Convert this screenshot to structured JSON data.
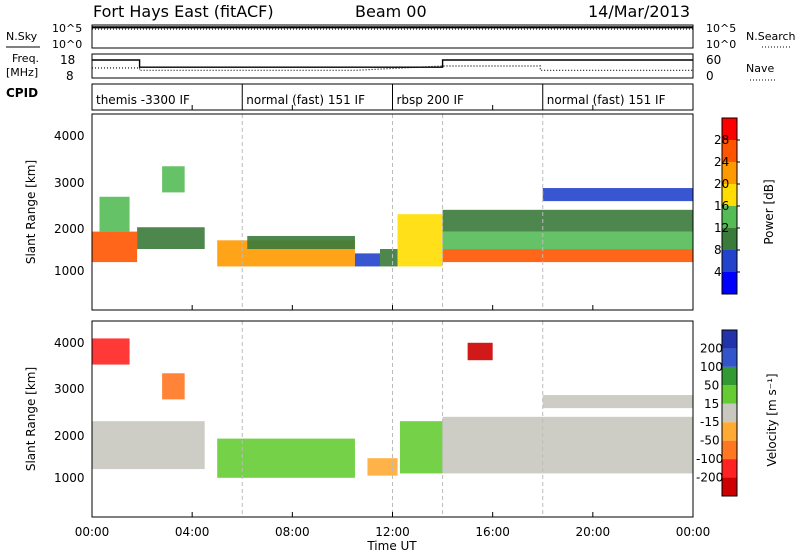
{
  "header": {
    "title": "Fort Hays East (fitACF)",
    "beam": "Beam 00",
    "date": "14/Mar/2013"
  },
  "noise_panel": {
    "left_label": "N.Sky",
    "right_label": "N.Search",
    "left_ticks": [
      "10^5",
      "10^0"
    ],
    "right_ticks": [
      "10^5",
      "10^0"
    ]
  },
  "freq_panel": {
    "left_label_line1": "Freq.",
    "left_label_line2": "[MHz]",
    "right_label": "Nave",
    "left_ticks": [
      "18",
      "8"
    ],
    "right_ticks": [
      "60",
      "0"
    ]
  },
  "cpid": {
    "label": "CPID",
    "segments": [
      {
        "text": "themis -3300 IF",
        "start_hour": 0
      },
      {
        "text": "normal (fast) 151 IF",
        "start_hour": 6
      },
      {
        "text": "rbsp 200 IF",
        "start_hour": 12
      },
      {
        "text": "normal (fast) 151 IF",
        "start_hour": 18
      }
    ]
  },
  "power_panel": {
    "ylabel": "Slant Range [km]",
    "yticks": [
      "4000",
      "3000",
      "2000",
      "1000"
    ],
    "colorbar_label": "Power [dB]",
    "colorbar_ticks": [
      "28",
      "24",
      "20",
      "16",
      "12",
      "8",
      "4"
    ],
    "colors": [
      "#0000ff",
      "#2244cc",
      "#3a7a3a",
      "#55bb55",
      "#ffdd00",
      "#ff9900",
      "#ff5500",
      "#ff0000"
    ]
  },
  "velocity_panel": {
    "ylabel": "Slant Range [km]",
    "yticks": [
      "4000",
      "3000",
      "2000",
      "1000"
    ],
    "colorbar_label": "Velocity [m s⁻¹]",
    "colorbar_ticks": [
      "200",
      "100",
      "50",
      "15",
      "-15",
      "-50",
      "-100",
      "-200"
    ],
    "colors": [
      "#2233aa",
      "#3355cc",
      "#339933",
      "#66cc33",
      "#c8c8c0",
      "#ffaa33",
      "#ff7722",
      "#ff2222",
      "#cc0000"
    ]
  },
  "x_axis": {
    "label": "Time UT",
    "ticks": [
      "00:00",
      "04:00",
      "08:00",
      "12:00",
      "16:00",
      "20:00",
      "00:00"
    ]
  },
  "chart_data": [
    {
      "type": "line",
      "title": "N.Sky / N.Search",
      "x_unit": "hours UT",
      "xlim": [
        0,
        24
      ],
      "ylim_log10": [
        0,
        5
      ],
      "series": [
        {
          "name": "N.Sky",
          "x": [
            0,
            24
          ],
          "y_log10": [
            4.5,
            4.5
          ]
        },
        {
          "name": "N.Search",
          "x": [
            0,
            24
          ],
          "y_log10": [
            4.1,
            4.1
          ]
        }
      ]
    },
    {
      "type": "line",
      "title": "Freq. [MHz] / Nave",
      "x_unit": "hours UT",
      "xlim": [
        0,
        24
      ],
      "ylim": [
        8,
        18
      ],
      "series": [
        {
          "name": "Freq.",
          "x": [
            0,
            1.9,
            1.9,
            14,
            14,
            24
          ],
          "y": [
            15.5,
            15.5,
            12.5,
            12.5,
            15.5,
            15.5
          ]
        },
        {
          "name": "Nave",
          "x": [
            0,
            1.9,
            1.9,
            10.5,
            10.5,
            14,
            14,
            17.9,
            17.9,
            24
          ],
          "y": [
            12.2,
            12.2,
            11.2,
            11.2,
            11.2,
            13,
            13,
            13,
            11.2,
            11.2
          ]
        }
      ]
    },
    {
      "type": "heatmap",
      "title": "Power [dB]",
      "x_unit": "hours UT",
      "xlim": [
        0,
        24
      ],
      "ylim": [
        0,
        4500
      ],
      "ylabel": "Slant Range [km]",
      "zlim": [
        0,
        30
      ],
      "regions": [
        {
          "x": [
            0,
            1.8
          ],
          "y": [
            1100,
            1800
          ],
          "value": 24
        },
        {
          "x": [
            0.3,
            1.5
          ],
          "y": [
            1800,
            2600
          ],
          "value": 12
        },
        {
          "x": [
            1.8,
            4.5
          ],
          "y": [
            1400,
            1900
          ],
          "value": 10
        },
        {
          "x": [
            2.8,
            3.7
          ],
          "y": [
            2700,
            3300
          ],
          "value": 14
        },
        {
          "x": [
            5.0,
            10.5
          ],
          "y": [
            1000,
            1600
          ],
          "value": 22
        },
        {
          "x": [
            6.2,
            10.5
          ],
          "y": [
            1400,
            1700
          ],
          "value": 10
        },
        {
          "x": [
            10.5,
            11.5
          ],
          "y": [
            1000,
            1300
          ],
          "value": 6
        },
        {
          "x": [
            11.5,
            12.2
          ],
          "y": [
            1000,
            1400
          ],
          "value": 8
        },
        {
          "x": [
            12.2,
            14
          ],
          "y": [
            1000,
            2200
          ],
          "value": 18
        },
        {
          "x": [
            14,
            24
          ],
          "y": [
            1100,
            1400
          ],
          "value": 26
        },
        {
          "x": [
            14,
            24
          ],
          "y": [
            1400,
            1800
          ],
          "value": 14
        },
        {
          "x": [
            14,
            24
          ],
          "y": [
            1800,
            2300
          ],
          "value": 8
        },
        {
          "x": [
            18,
            24
          ],
          "y": [
            2500,
            2800
          ],
          "value": 6
        }
      ]
    },
    {
      "type": "heatmap",
      "title": "Velocity [m s⁻¹]",
      "x_unit": "hours UT",
      "xlim": [
        0,
        24
      ],
      "ylim": [
        0,
        4500
      ],
      "ylabel": "Slant Range [km]",
      "zlim": [
        -200,
        200
      ],
      "regions": [
        {
          "x": [
            0,
            4.5
          ],
          "y": [
            1100,
            2200
          ],
          "value": 0
        },
        {
          "x": [
            2.8,
            3.7
          ],
          "y": [
            2700,
            3300
          ],
          "value": -80
        },
        {
          "x": [
            0,
            1.5
          ],
          "y": [
            3500,
            4100
          ],
          "value": -150
        },
        {
          "x": [
            5.0,
            10.5
          ],
          "y": [
            900,
            1800
          ],
          "value": 40
        },
        {
          "x": [
            11.0,
            12.2
          ],
          "y": [
            950,
            1350
          ],
          "value": -40
        },
        {
          "x": [
            12.3,
            14
          ],
          "y": [
            1000,
            2200
          ],
          "value": 60
        },
        {
          "x": [
            14,
            24
          ],
          "y": [
            1000,
            2300
          ],
          "value": 0
        },
        {
          "x": [
            15,
            16
          ],
          "y": [
            3600,
            4000
          ],
          "value": -180
        },
        {
          "x": [
            18,
            24
          ],
          "y": [
            2500,
            2800
          ],
          "value": 0
        }
      ]
    }
  ]
}
